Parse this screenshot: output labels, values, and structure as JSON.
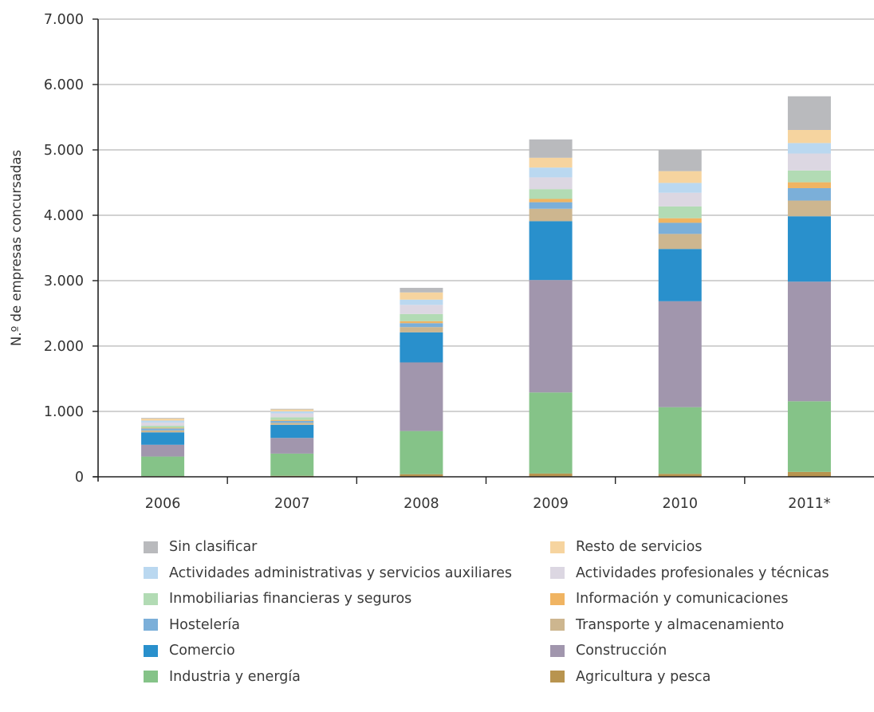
{
  "chart_data": {
    "type": "bar",
    "stacked": true,
    "categories": [
      "2006",
      "2007",
      "2008",
      "2009",
      "2010",
      "2011*"
    ],
    "ylabel": "N.º de empresas concursadas",
    "ylim": [
      0,
      7000
    ],
    "yticks": [
      0,
      1000,
      2000,
      3000,
      4000,
      5000,
      6000,
      7000
    ],
    "ytick_labels": [
      "0",
      "1.000",
      "2.000",
      "3.000",
      "4.000",
      "5.000",
      "6.000",
      "7.000"
    ],
    "grid": true,
    "legend_position": "bottom",
    "series": [
      {
        "name": "Agricultura y pesca",
        "color": "#b8944f",
        "values": [
          10,
          15,
          40,
          50,
          45,
          75
        ]
      },
      {
        "name": "Industria y energía",
        "color": "#85c388",
        "values": [
          300,
          340,
          660,
          1240,
          1020,
          1080
        ]
      },
      {
        "name": "Construcción",
        "color": "#a196ad",
        "values": [
          180,
          240,
          1050,
          1720,
          1620,
          1830
        ]
      },
      {
        "name": "Comercio",
        "color": "#2990cc",
        "values": [
          190,
          200,
          460,
          900,
          800,
          1000
        ]
      },
      {
        "name": "Transporte y almacenamiento",
        "color": "#cdb68f",
        "values": [
          30,
          30,
          80,
          190,
          230,
          240
        ]
      },
      {
        "name": "Hostelería",
        "color": "#7bafd9",
        "values": [
          30,
          30,
          60,
          100,
          170,
          190
        ]
      },
      {
        "name": "Información y comunicaciones",
        "color": "#f0b462",
        "values": [
          10,
          15,
          30,
          50,
          70,
          90
        ]
      },
      {
        "name": "Inmobiliarias financieras y seguros",
        "color": "#b2dbb4",
        "values": [
          30,
          40,
          110,
          150,
          180,
          180
        ]
      },
      {
        "name": "Actividades profesionales y técnicas",
        "color": "#dcd7e2",
        "values": [
          50,
          60,
          140,
          180,
          210,
          260
        ]
      },
      {
        "name": "Actividades administrativas y servicios auxiliares",
        "color": "#bad8f0",
        "values": [
          30,
          30,
          80,
          150,
          150,
          160
        ]
      },
      {
        "name": "Resto de servicios",
        "color": "#f6d49f",
        "values": [
          30,
          30,
          110,
          150,
          180,
          200
        ]
      },
      {
        "name": "Sin clasificar",
        "color": "#b9babd",
        "values": [
          10,
          10,
          70,
          280,
          325,
          515
        ]
      }
    ]
  },
  "legend_order": [
    "Sin clasificar",
    "Resto de servicios",
    "Actividades administrativas y servicios auxiliares",
    "Actividades profesionales y técnicas",
    "Inmobiliarias financieras y seguros",
    "Información y comunicaciones",
    "Hostelería",
    "Transporte y almacenamiento",
    "Comercio",
    "Construcción",
    "Industria y energía",
    "Agricultura y pesca"
  ]
}
